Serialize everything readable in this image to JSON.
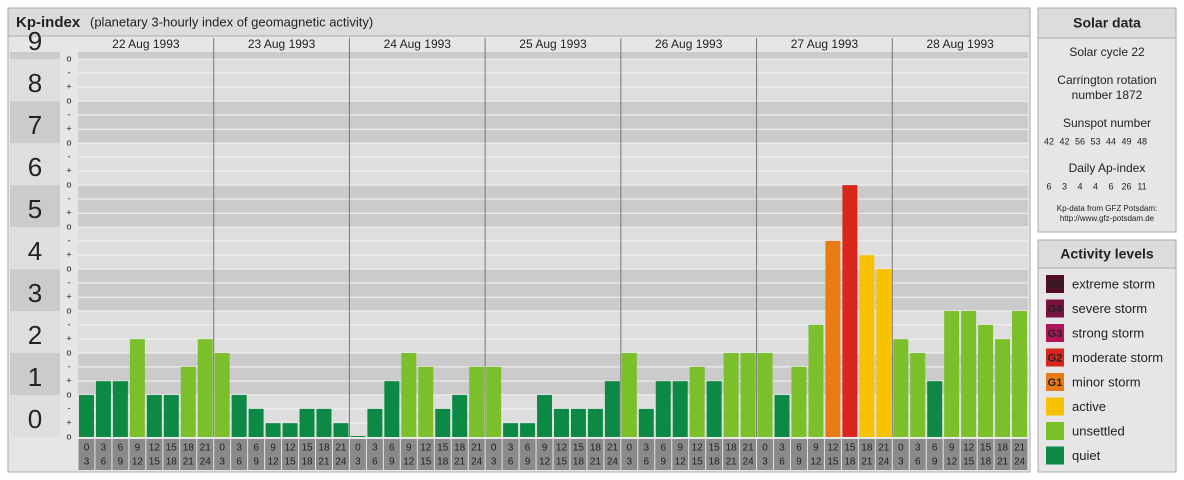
{
  "chart_data": {
    "type": "bar",
    "title": "Kp-index",
    "subtitle": "(planetary 3-hourly index of geomagnetic activity)",
    "days": [
      "22 Aug 1993",
      "23 Aug 1993",
      "24 Aug 1993",
      "25 Aug 1993",
      "26 Aug 1993",
      "27 Aug 1993",
      "28 Aug 1993"
    ],
    "hours": [
      {
        "from": "0",
        "to": "3"
      },
      {
        "from": "3",
        "to": "6"
      },
      {
        "from": "6",
        "to": "9"
      },
      {
        "from": "9",
        "to": "12"
      },
      {
        "from": "12",
        "to": "15"
      },
      {
        "from": "15",
        "to": "18"
      },
      {
        "from": "18",
        "to": "21"
      },
      {
        "from": "21",
        "to": "24"
      }
    ],
    "values": [
      1,
      1.33,
      1.33,
      2.33,
      1,
      1,
      1.67,
      2.33,
      2,
      1,
      0.67,
      0.33,
      0.33,
      0.67,
      0.67,
      0.33,
      0,
      0.67,
      1.33,
      2,
      1.67,
      0.67,
      1,
      1.67,
      1.67,
      0.33,
      0.33,
      1,
      0.67,
      0.67,
      0.67,
      1.33,
      2,
      0.67,
      1.33,
      1.33,
      1.67,
      1.33,
      2,
      2,
      2,
      1,
      1.67,
      2.67,
      4.67,
      6,
      4.33,
      4,
      2.33,
      2,
      1.33,
      3,
      3,
      2.67,
      2.33,
      3
    ],
    "colors": [
      "#0c8a45",
      "#0c8a45",
      "#0c8a45",
      "#7bbf2a",
      "#0c8a45",
      "#0c8a45",
      "#7bbf2a",
      "#7bbf2a",
      "#7bbf2a",
      "#0c8a45",
      "#0c8a45",
      "#0c8a45",
      "#0c8a45",
      "#0c8a45",
      "#0c8a45",
      "#0c8a45",
      "#0c8a45",
      "#0c8a45",
      "#0c8a45",
      "#7bbf2a",
      "#7bbf2a",
      "#0c8a45",
      "#0c8a45",
      "#7bbf2a",
      "#7bbf2a",
      "#0c8a45",
      "#0c8a45",
      "#0c8a45",
      "#0c8a45",
      "#0c8a45",
      "#0c8a45",
      "#0c8a45",
      "#7bbf2a",
      "#0c8a45",
      "#0c8a45",
      "#0c8a45",
      "#7bbf2a",
      "#0c8a45",
      "#7bbf2a",
      "#7bbf2a",
      "#7bbf2a",
      "#0c8a45",
      "#7bbf2a",
      "#7bbf2a",
      "#e87b14",
      "#d9261c",
      "#f7c200",
      "#f7c200",
      "#7bbf2a",
      "#7bbf2a",
      "#0c8a45",
      "#7bbf2a",
      "#7bbf2a",
      "#7bbf2a",
      "#7bbf2a",
      "#7bbf2a"
    ],
    "ylim": [
      0,
      9.17
    ],
    "yticks": [
      0,
      1,
      2,
      3,
      4,
      5,
      6,
      7,
      8,
      9
    ],
    "minor_yticks": [
      {
        "value": 9,
        "label": "o"
      },
      {
        "value": 8.67,
        "label": "-"
      },
      {
        "value": 8.33,
        "label": "+"
      },
      {
        "value": 8,
        "label": "o"
      },
      {
        "value": 7.67,
        "label": "-"
      },
      {
        "value": 7.33,
        "label": "+"
      },
      {
        "value": 7,
        "label": "o"
      },
      {
        "value": 6.67,
        "label": "-"
      },
      {
        "value": 6.33,
        "label": "+"
      },
      {
        "value": 6,
        "label": "o"
      },
      {
        "value": 5.67,
        "label": "-"
      },
      {
        "value": 5.33,
        "label": "+"
      },
      {
        "value": 5,
        "label": "o"
      },
      {
        "value": 4.67,
        "label": "-"
      },
      {
        "value": 4.33,
        "label": "+"
      },
      {
        "value": 4,
        "label": "o"
      },
      {
        "value": 3.67,
        "label": "-"
      },
      {
        "value": 3.33,
        "label": "+"
      },
      {
        "value": 3,
        "label": "o"
      },
      {
        "value": 2.67,
        "label": "-"
      },
      {
        "value": 2.33,
        "label": "+"
      },
      {
        "value": 2,
        "label": "o"
      },
      {
        "value": 1.67,
        "label": "-"
      },
      {
        "value": 1.33,
        "label": "+"
      },
      {
        "value": 1,
        "label": "o"
      },
      {
        "value": 0.67,
        "label": "-"
      },
      {
        "value": 0.33,
        "label": "+"
      },
      {
        "value": 0,
        "label": "o"
      }
    ],
    "grid": true
  },
  "solar_data": {
    "title": "Solar data",
    "cycle": "Solar cycle 22",
    "rotation": [
      "Carrington rotation",
      "number 1872"
    ],
    "sunspot_title": "Sunspot number",
    "sunspot": [
      42,
      42,
      56,
      53,
      44,
      49,
      48
    ],
    "ap_title": "Daily Ap-index",
    "ap": [
      6,
      3,
      4,
      4,
      6,
      26,
      11
    ],
    "source": [
      "Kp-data from GFZ Potsdam:",
      "http://www.gfz-potsdam.de"
    ]
  },
  "activity_levels": {
    "title": "Activity levels",
    "items": [
      {
        "code": "G5",
        "label": "extreme storm",
        "color": "#4d0f28"
      },
      {
        "code": "G4",
        "label": "severe storm",
        "color": "#7a1340"
      },
      {
        "code": "G3",
        "label": "strong storm",
        "color": "#b0155a"
      },
      {
        "code": "G2",
        "label": "moderate storm",
        "color": "#d9261c"
      },
      {
        "code": "G1",
        "label": "minor storm",
        "color": "#e87b14"
      },
      {
        "code": null,
        "label": "active",
        "color": "#f7c200"
      },
      {
        "code": null,
        "label": "unsettled",
        "color": "#7bbf2a"
      },
      {
        "code": null,
        "label": "quiet",
        "color": "#0c8a45"
      }
    ]
  }
}
